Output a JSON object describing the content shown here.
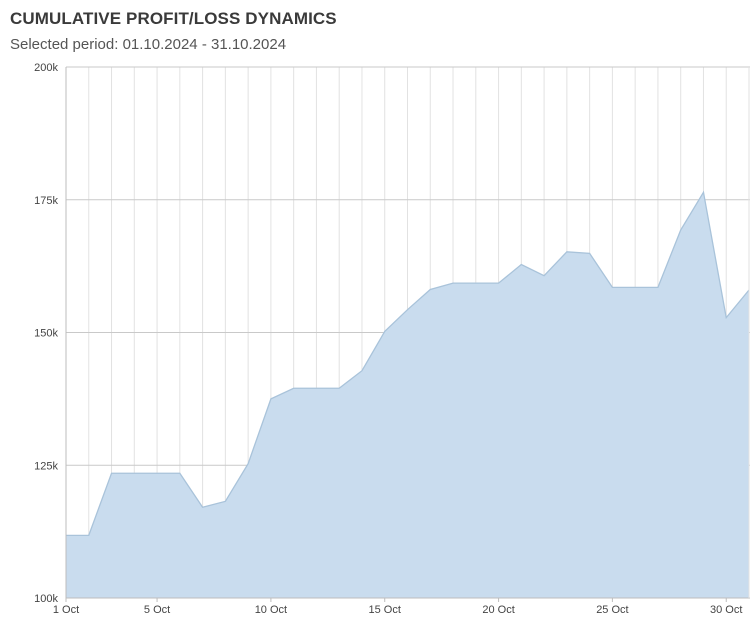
{
  "header": {
    "title": "CUMULATIVE PROFIT/LOSS DYNAMICS",
    "subtitle": "Selected period: 01.10.2024 - 31.10.2024"
  },
  "chart_data": {
    "type": "area",
    "title": "CUMULATIVE PROFIT/LOSS DYNAMICS",
    "subtitle": "Selected period: 01.10.2024 - 31.10.2024",
    "xlabel": "",
    "ylabel": "",
    "x": [
      "1 Oct",
      "2 Oct",
      "3 Oct",
      "4 Oct",
      "5 Oct",
      "6 Oct",
      "7 Oct",
      "8 Oct",
      "9 Oct",
      "10 Oct",
      "11 Oct",
      "12 Oct",
      "13 Oct",
      "14 Oct",
      "15 Oct",
      "16 Oct",
      "17 Oct",
      "18 Oct",
      "19 Oct",
      "20 Oct",
      "21 Oct",
      "22 Oct",
      "23 Oct",
      "24 Oct",
      "25 Oct",
      "26 Oct",
      "27 Oct",
      "28 Oct",
      "29 Oct",
      "30 Oct",
      "31 Oct"
    ],
    "x_tick_labels": [
      "1 Oct",
      "5 Oct",
      "10 Oct",
      "15 Oct",
      "20 Oct",
      "25 Oct",
      "30 Oct"
    ],
    "x_tick_index": [
      0,
      4,
      9,
      14,
      19,
      24,
      29
    ],
    "series": [
      {
        "values": [
          111800,
          111800,
          123500,
          123500,
          123500,
          123500,
          117100,
          118200,
          125300,
          137500,
          139500,
          139500,
          139500,
          142800,
          150200,
          154300,
          158100,
          159300,
          159300,
          159300,
          162800,
          160700,
          165200,
          164900,
          158500,
          158500,
          158500,
          169300,
          176400,
          152800,
          158000
        ]
      }
    ],
    "ylim": [
      100000,
      200000
    ],
    "y_ticks": [
      100000,
      125000,
      150000,
      175000,
      200000
    ],
    "y_tick_labels": [
      "100k",
      "125k",
      "150k",
      "175k",
      "200k"
    ],
    "grid": true,
    "legend": "none",
    "colors": {
      "fill": "#c9dcee",
      "line": "#a9c3da",
      "major_grid": "#c9c9c9",
      "minor_grid": "#e2e2e2",
      "axis": "#bdbdbd"
    }
  }
}
